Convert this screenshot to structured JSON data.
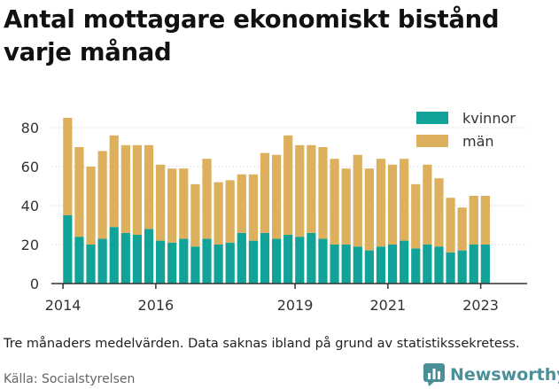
{
  "title": "Antal mottagare ekonomiskt bistånd varje månad",
  "note": "Tre månaders medelvärden. Data saknas ibland på grund av statistikssekretess.",
  "source": "Källa: Socialstyrelsen",
  "brand": {
    "name": "Newsworthy",
    "icon": "bar-chart-logo-icon"
  },
  "colors": {
    "kvinnor": "#12a398",
    "man": "#dcb05c",
    "axis": "#333333",
    "grid": "#e0e0e0",
    "brand": "#4b8f98"
  },
  "chart_data": {
    "type": "bar",
    "stacked": true,
    "x_unit": "year",
    "x": [
      2014.1,
      2014.35,
      2014.6,
      2014.85,
      2015.1,
      2015.35,
      2015.6,
      2015.85,
      2016.1,
      2016.35,
      2016.6,
      2016.85,
      2017.1,
      2017.35,
      2017.6,
      2017.85,
      2018.1,
      2018.35,
      2018.6,
      2018.85,
      2019.1,
      2019.35,
      2019.6,
      2019.85,
      2020.1,
      2020.35,
      2020.6,
      2020.85,
      2021.1,
      2021.35,
      2021.6,
      2021.85,
      2022.1,
      2022.35,
      2022.6,
      2022.85,
      2023.1
    ],
    "series": [
      {
        "name": "kvinnor",
        "values": [
          35,
          24,
          20,
          23,
          29,
          26,
          25,
          28,
          22,
          21,
          23,
          19,
          23,
          20,
          21,
          26,
          22,
          26,
          23,
          25,
          24,
          26,
          23,
          20,
          20,
          19,
          17,
          19,
          20,
          22,
          18,
          20,
          19,
          16,
          17,
          20,
          20
        ]
      },
      {
        "name": "män",
        "values": [
          50,
          46,
          40,
          45,
          47,
          45,
          46,
          43,
          39,
          38,
          36,
          32,
          41,
          32,
          32,
          30,
          34,
          41,
          43,
          51,
          47,
          45,
          47,
          44,
          39,
          47,
          42,
          45,
          41,
          42,
          33,
          41,
          35,
          28,
          22,
          25,
          25
        ]
      }
    ],
    "xticks": [
      2014,
      2016,
      2019,
      2021,
      2023
    ],
    "yticks": [
      0,
      20,
      40,
      60,
      80
    ],
    "xlim": [
      2013.75,
      2024.0
    ],
    "ylim": [
      0,
      90
    ],
    "legend": "top-right",
    "grid": true
  }
}
